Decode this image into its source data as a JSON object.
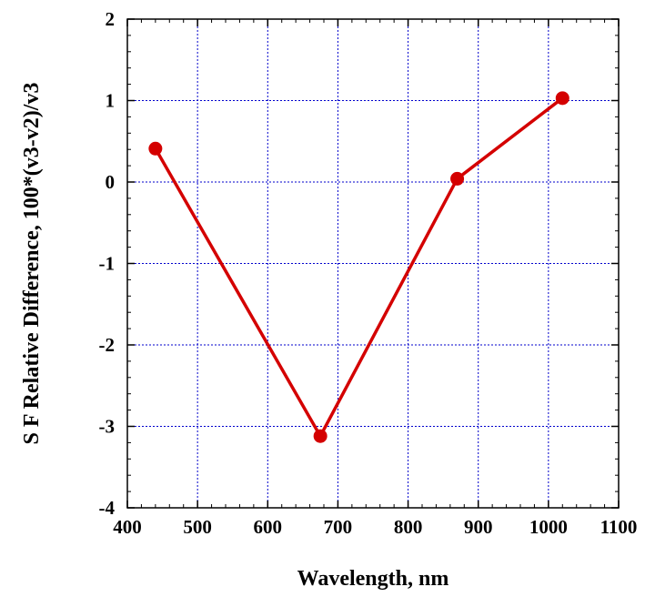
{
  "chart_data": {
    "type": "line",
    "title": "",
    "xlabel": "Wavelength, nm",
    "ylabel": "S F Relative Difference, 100*(v3-v2)/v3",
    "xlim": [
      400,
      1100
    ],
    "ylim": [
      -4,
      2
    ],
    "x_ticks": [
      400,
      500,
      600,
      700,
      800,
      900,
      1000,
      1100
    ],
    "y_ticks": [
      -4,
      -3,
      -2,
      -1,
      0,
      1,
      2
    ],
    "grid": true,
    "series": [
      {
        "x": [
          440,
          675,
          870,
          1020
        ],
        "y": [
          0.41,
          -3.12,
          0.04,
          1.03
        ],
        "color": "#d40000",
        "marker": "circle"
      }
    ],
    "colors": {
      "grid": "#0000cc",
      "axes": "#000000",
      "series": "#d40000"
    }
  }
}
